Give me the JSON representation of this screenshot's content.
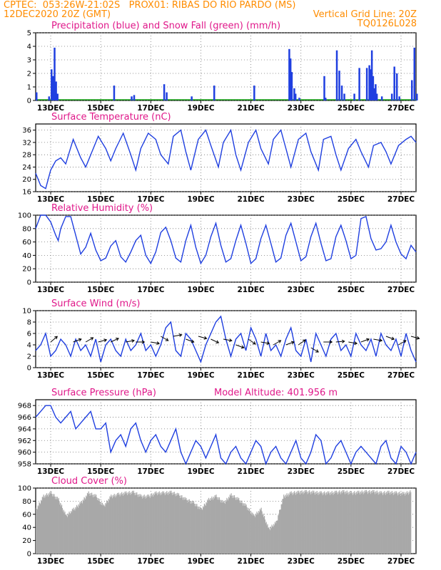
{
  "header": {
    "line1_left": "CPTEC:  053:26W-21:02S   PROX01: RIBAS DO RIO PARDO (MS)",
    "line2_left": "12DEC2020 20Z (GMT)",
    "line2_right": "Vertical Grid Line: 20Z",
    "line3_right": "TQ0126L028"
  },
  "colors": {
    "header": "#ff8c00",
    "titles": "#e0188a",
    "lines": "#1f3fe0",
    "snow": "#1aa61a",
    "cloud": "#a8a8a8",
    "arrows": "#000000"
  },
  "x_ticks": [
    "13DEC",
    "15DEC",
    "17DEC",
    "19DEC",
    "21DEC",
    "23DEC",
    "25DEC",
    "27DEC"
  ],
  "chart_data": [
    {
      "type": "bar",
      "title": "Precipitation (blue) and Snow Fall (green) (mm/h)",
      "ylim": [
        0,
        5
      ],
      "yticks": [
        0,
        1,
        2,
        3,
        4,
        5
      ],
      "series": [
        {
          "name": "Precipitation",
          "color": "#1f3fe0",
          "points": [
            [
              0.0,
              0.6
            ],
            [
              0.5,
              0.3
            ],
            [
              0.6,
              2.3
            ],
            [
              0.66,
              1.8
            ],
            [
              0.72,
              3.9
            ],
            [
              0.78,
              1.4
            ],
            [
              0.84,
              0.5
            ],
            [
              3.1,
              1.1
            ],
            [
              3.8,
              0.3
            ],
            [
              3.9,
              0.4
            ],
            [
              5.1,
              1.2
            ],
            [
              5.2,
              0.6
            ],
            [
              6.2,
              0.3
            ],
            [
              7.1,
              1.1
            ],
            [
              8.7,
              1.1
            ],
            [
              10.1,
              3.8
            ],
            [
              10.15,
              3.1
            ],
            [
              10.2,
              2.1
            ],
            [
              10.3,
              0.9
            ],
            [
              10.35,
              0.5
            ],
            [
              10.5,
              0.2
            ],
            [
              11.5,
              1.8
            ],
            [
              11.55,
              0.2
            ],
            [
              12.0,
              3.7
            ],
            [
              12.1,
              2.2
            ],
            [
              12.2,
              1.1
            ],
            [
              12.3,
              0.5
            ],
            [
              12.7,
              0.5
            ],
            [
              12.9,
              2.4
            ],
            [
              13.2,
              2.4
            ],
            [
              13.3,
              2.6
            ],
            [
              13.35,
              2.3
            ],
            [
              13.4,
              3.7
            ],
            [
              13.45,
              1.8
            ],
            [
              13.5,
              0.9
            ],
            [
              13.55,
              1.2
            ],
            [
              13.6,
              0.5
            ],
            [
              13.8,
              0.3
            ],
            [
              14.2,
              0.5
            ],
            [
              14.3,
              2.5
            ],
            [
              14.4,
              2.0
            ],
            [
              14.5,
              0.3
            ],
            [
              15.0,
              1.5
            ],
            [
              15.1,
              3.9
            ],
            [
              15.2,
              0.5
            ]
          ]
        },
        {
          "name": "Snow Fall",
          "color": "#1aa61a",
          "points": []
        }
      ]
    },
    {
      "type": "line",
      "title": "Surface Temperature (nC)",
      "ylim": [
        16,
        38
      ],
      "yticks": [
        16,
        20,
        24,
        28,
        32,
        36
      ],
      "x": [
        0,
        0.2,
        0.4,
        0.6,
        0.8,
        1.0,
        1.2,
        1.5,
        1.7,
        1.8,
        2.0,
        2.3,
        2.5,
        2.8,
        3.0,
        3.2,
        3.5,
        3.8,
        4.0,
        4.2,
        4.5,
        4.8,
        5.0,
        5.3,
        5.5,
        5.8,
        6.0,
        6.2,
        6.5,
        6.8,
        7.0,
        7.3,
        7.5,
        7.8,
        8.0,
        8.2,
        8.5,
        8.8,
        9.0,
        9.3,
        9.5,
        9.8,
        10.0,
        10.2,
        10.5,
        10.8,
        11.0,
        11.3,
        11.5,
        11.8,
        12.0,
        12.2,
        12.5,
        12.8,
        13.0,
        13.3,
        13.5,
        13.8,
        14.0,
        14.2,
        14.5,
        14.8,
        15.0,
        15.2
      ],
      "series": [
        {
          "values": [
            22,
            18,
            17,
            23,
            26,
            27,
            25,
            33,
            29,
            27,
            24,
            30,
            34,
            30,
            26,
            30,
            35,
            28,
            23,
            30,
            35,
            33,
            28,
            25,
            34,
            36,
            29,
            23,
            33,
            36,
            31,
            24,
            32,
            36,
            28,
            23,
            32,
            36,
            30,
            25,
            33,
            36,
            30,
            24,
            33,
            35,
            29,
            23,
            33,
            34,
            28,
            23,
            30,
            33,
            29,
            24,
            31,
            32,
            29,
            25,
            31,
            33,
            34,
            32
          ]
        }
      ]
    },
    {
      "type": "line",
      "title": "Relative Humidity (%)",
      "ylim": [
        0,
        100
      ],
      "yticks": [
        0,
        20,
        40,
        60,
        80,
        100
      ],
      "x": [
        0,
        0.2,
        0.4,
        0.6,
        0.8,
        0.9,
        1.0,
        1.2,
        1.4,
        1.6,
        1.8,
        2.0,
        2.2,
        2.4,
        2.6,
        2.8,
        3.0,
        3.2,
        3.4,
        3.6,
        3.8,
        4.0,
        4.2,
        4.4,
        4.6,
        4.8,
        5.0,
        5.2,
        5.4,
        5.6,
        5.8,
        6.0,
        6.2,
        6.4,
        6.6,
        6.8,
        7.0,
        7.2,
        7.4,
        7.6,
        7.8,
        8.0,
        8.2,
        8.4,
        8.6,
        8.8,
        9.0,
        9.2,
        9.4,
        9.6,
        9.8,
        10.0,
        10.2,
        10.4,
        10.6,
        10.8,
        11.0,
        11.2,
        11.4,
        11.6,
        11.8,
        12.0,
        12.2,
        12.4,
        12.6,
        12.8,
        13.0,
        13.2,
        13.4,
        13.6,
        13.8,
        14.0,
        14.2,
        14.4,
        14.6,
        14.8,
        15.0,
        15.2
      ],
      "series": [
        {
          "values": [
            80,
            100,
            100,
            90,
            70,
            62,
            80,
            98,
            98,
            70,
            42,
            52,
            73,
            48,
            32,
            36,
            54,
            62,
            38,
            30,
            45,
            62,
            70,
            40,
            28,
            45,
            74,
            82,
            62,
            36,
            30,
            62,
            85,
            52,
            28,
            40,
            68,
            88,
            55,
            30,
            35,
            62,
            85,
            58,
            28,
            35,
            65,
            85,
            58,
            30,
            36,
            70,
            88,
            60,
            32,
            38,
            68,
            88,
            58,
            32,
            35,
            68,
            85,
            62,
            35,
            40,
            95,
            98,
            65,
            48,
            50,
            60,
            85,
            60,
            42,
            35,
            55,
            45
          ]
        }
      ]
    },
    {
      "type": "line",
      "title": "Surface Wind (m/s)",
      "ylim": [
        0,
        10
      ],
      "yticks": [
        0,
        2,
        4,
        6,
        8,
        10
      ],
      "x": [
        0,
        0.2,
        0.4,
        0.6,
        0.8,
        1.0,
        1.2,
        1.4,
        1.6,
        1.8,
        2.0,
        2.2,
        2.4,
        2.6,
        2.8,
        3.0,
        3.2,
        3.4,
        3.6,
        3.8,
        4.0,
        4.2,
        4.4,
        4.6,
        4.8,
        5.0,
        5.2,
        5.4,
        5.6,
        5.8,
        6.0,
        6.2,
        6.4,
        6.6,
        6.8,
        7.0,
        7.2,
        7.4,
        7.6,
        7.8,
        8.0,
        8.2,
        8.4,
        8.6,
        8.8,
        9.0,
        9.2,
        9.4,
        9.6,
        9.8,
        10.0,
        10.2,
        10.4,
        10.6,
        10.8,
        11.0,
        11.2,
        11.4,
        11.6,
        11.8,
        12.0,
        12.2,
        12.4,
        12.6,
        12.8,
        13.0,
        13.2,
        13.4,
        13.6,
        13.8,
        14.0,
        14.2,
        14.4,
        14.6,
        14.8,
        15.0,
        15.2
      ],
      "series": [
        {
          "values": [
            3,
            4,
            6,
            2,
            3,
            5,
            4,
            2,
            5,
            3,
            4,
            2,
            5,
            1,
            4,
            5,
            3,
            2,
            5,
            3,
            4,
            6,
            3,
            4,
            2,
            4,
            7,
            8,
            3,
            2,
            6,
            5,
            3,
            1,
            4,
            6,
            8,
            9,
            5,
            2,
            5,
            6,
            3,
            7,
            5,
            2,
            6,
            3,
            4,
            2,
            5,
            7,
            3,
            2,
            5,
            1,
            6,
            4,
            2,
            5,
            6,
            3,
            4,
            2,
            6,
            4,
            3,
            5,
            2,
            6,
            4,
            3,
            5,
            2,
            6,
            3,
            1
          ]
        }
      ],
      "arrows": [
        [
          0.6,
          4.5,
          40
        ],
        [
          1.5,
          4.5,
          20
        ],
        [
          2.0,
          4.5,
          30
        ],
        [
          2.5,
          4.5,
          15
        ],
        [
          3.0,
          4.5,
          25
        ],
        [
          3.6,
          4.5,
          10
        ],
        [
          4.0,
          4.5,
          0
        ],
        [
          4.6,
          4.5,
          -10
        ],
        [
          5.0,
          5.5,
          -30
        ],
        [
          5.5,
          5.5,
          10
        ],
        [
          6.0,
          5.0,
          -20
        ],
        [
          6.5,
          5.5,
          -15
        ],
        [
          7.0,
          5.0,
          -25
        ],
        [
          7.5,
          5.0,
          -10
        ],
        [
          8.0,
          4.0,
          -20
        ],
        [
          8.5,
          5.0,
          -35
        ],
        [
          9.0,
          4.5,
          -10
        ],
        [
          9.5,
          4.0,
          30
        ],
        [
          10.0,
          4.0,
          20
        ],
        [
          10.5,
          4.0,
          35
        ],
        [
          11.0,
          3.5,
          -30
        ],
        [
          11.5,
          4.5,
          0
        ],
        [
          12.0,
          4.5,
          5
        ],
        [
          12.5,
          4.5,
          -10
        ],
        [
          13.0,
          4.5,
          20
        ],
        [
          13.5,
          5.0,
          -10
        ],
        [
          14.0,
          5.5,
          -20
        ],
        [
          14.5,
          4.0,
          30
        ],
        [
          15.0,
          5.5,
          -15
        ]
      ]
    },
    {
      "type": "line",
      "title": "Surface Pressure (hPa)",
      "annotation": "Model Altitude: 401.956 m",
      "ylim": [
        958,
        969
      ],
      "yticks": [
        958,
        960,
        962,
        964,
        966,
        968
      ],
      "x": [
        0,
        0.2,
        0.4,
        0.6,
        0.8,
        1.0,
        1.2,
        1.4,
        1.6,
        1.8,
        2.0,
        2.2,
        2.4,
        2.6,
        2.8,
        3.0,
        3.2,
        3.4,
        3.6,
        3.8,
        4.0,
        4.2,
        4.4,
        4.6,
        4.8,
        5.0,
        5.2,
        5.4,
        5.6,
        5.8,
        6.0,
        6.2,
        6.4,
        6.6,
        6.8,
        7.0,
        7.2,
        7.4,
        7.6,
        7.8,
        8.0,
        8.2,
        8.4,
        8.6,
        8.8,
        9.0,
        9.2,
        9.4,
        9.6,
        9.8,
        10.0,
        10.2,
        10.4,
        10.6,
        10.8,
        11.0,
        11.2,
        11.4,
        11.6,
        11.8,
        12.0,
        12.2,
        12.4,
        12.6,
        12.8,
        13.0,
        13.2,
        13.4,
        13.6,
        13.8,
        14.0,
        14.2,
        14.4,
        14.6,
        14.8,
        15.0,
        15.2
      ],
      "series": [
        {
          "values": [
            966,
            967,
            968,
            968,
            966,
            965,
            966,
            967,
            964,
            965,
            966,
            967,
            964,
            964,
            965,
            960,
            962,
            963,
            961,
            964,
            965,
            962,
            960,
            962,
            963,
            961,
            960,
            962,
            964,
            960,
            958,
            960,
            962,
            961,
            959,
            961,
            963,
            959,
            958,
            960,
            961,
            959,
            958,
            960,
            962,
            961,
            958,
            960,
            961,
            959,
            958,
            960,
            962,
            959,
            958,
            960,
            963,
            962,
            958,
            959,
            961,
            962,
            960,
            958,
            960,
            961,
            960,
            959,
            958,
            961,
            962,
            959,
            958,
            961,
            960,
            958,
            960
          ]
        }
      ]
    },
    {
      "type": "bar",
      "title": "Cloud Cover (%)",
      "ylim": [
        0,
        100
      ],
      "yticks": [
        0,
        20,
        40,
        60,
        80,
        100
      ],
      "x": [
        0,
        0.3,
        0.6,
        0.9,
        1.2,
        1.5,
        1.8,
        2.1,
        2.4,
        2.7,
        3.0,
        3.3,
        3.6,
        3.9,
        4.2,
        4.5,
        4.8,
        5.1,
        5.4,
        5.7,
        6.0,
        6.3,
        6.6,
        6.9,
        7.2,
        7.5,
        7.8,
        8.1,
        8.4,
        8.7,
        9.0,
        9.3,
        9.6,
        9.9,
        10.2,
        10.5,
        10.8,
        11.1,
        11.4,
        11.7,
        12.0,
        12.3,
        12.6,
        12.9,
        13.2,
        13.5,
        13.8,
        14.1,
        14.4,
        14.7,
        15.0
      ],
      "values": [
        70,
        90,
        95,
        85,
        60,
        70,
        80,
        95,
        90,
        75,
        90,
        93,
        95,
        96,
        90,
        90,
        95,
        95,
        96,
        92,
        85,
        80,
        70,
        85,
        90,
        80,
        92,
        85,
        75,
        60,
        70,
        40,
        50,
        90,
        95,
        96,
        97,
        96,
        95,
        95,
        96,
        97,
        95,
        96,
        97,
        97,
        95,
        96,
        95,
        94,
        97
      ]
    }
  ]
}
